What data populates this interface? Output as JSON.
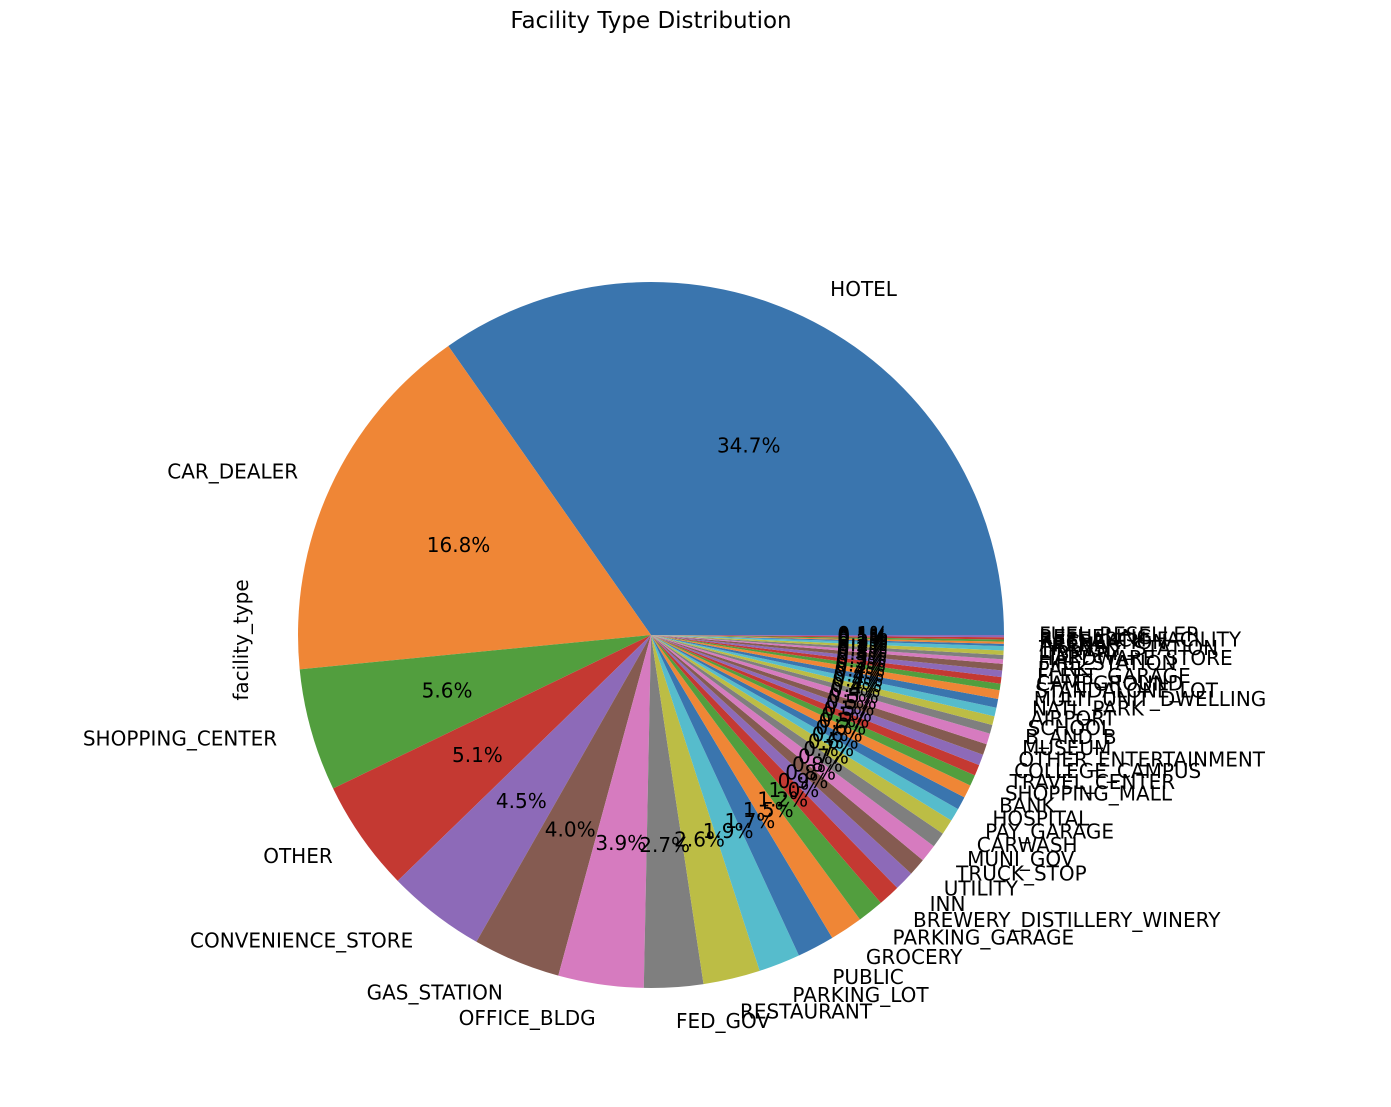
{
  "chart_data": {
    "type": "pie",
    "title": "Facility Type Distribution",
    "ylabel": "facility_type",
    "start_angle_deg": 0,
    "direction": "counterclockwise",
    "categories": [
      "HOTEL",
      "CAR_DEALER",
      "SHOPPING_CENTER",
      "OTHER",
      "CONVENIENCE_STORE",
      "GAS_STATION",
      "OFFICE_BLDG",
      "FED_GOV",
      "RESTAURANT",
      "PARKING_LOT",
      "PUBLIC",
      "GROCERY",
      "PARKING_GARAGE",
      "BREWERY_DISTILLERY_WINERY",
      "INN",
      "UTILITY",
      "TRUCK_STOP",
      "MUNI_GOV",
      "CARWASH",
      "PAY_GARAGE",
      "HOSPITAL",
      "BANK",
      "SHOPPING_MALL",
      "TRAVEL_CENTER",
      "COLLEGE_CAMPUS",
      "OTHER_ENTERTAINMENT",
      "MUSEUM",
      "B_AND_B",
      "SCHOOL",
      "AIRPORT",
      "NATL_PARK",
      "MULTI_UNIT_DWELLING",
      "STANDALONE_LOT",
      "CAMPGROUND",
      "FLEET_GARAGE",
      "PARK",
      "FIRE_STATION",
      "HARDWARE_STORE",
      "LIBRARY",
      "TRANSIT_STATION",
      "ARENA",
      "RECREATION",
      "RESEARCH_FACILITY",
      "REFUELING",
      "FUEL_RESELLER"
    ],
    "values": [
      34.7,
      16.8,
      5.6,
      5.1,
      4.5,
      4.0,
      3.9,
      2.7,
      2.6,
      1.9,
      1.7,
      1.5,
      1.2,
      1.0,
      0.9,
      0.8,
      0.8,
      0.7,
      0.7,
      0.6,
      0.6,
      0.6,
      0.5,
      0.5,
      0.5,
      0.5,
      0.5,
      0.4,
      0.4,
      0.4,
      0.4,
      0.4,
      0.3,
      0.3,
      0.3,
      0.3,
      0.2,
      0.2,
      0.2,
      0.2,
      0.1,
      0.1,
      0.1,
      0.1,
      0.1
    ],
    "labels": [
      "34.7%",
      "16.8%",
      "5.6%",
      "5.1%",
      "4.5%",
      "4.0%",
      "3.9%",
      "2.7%",
      "2.6%",
      "1.9%",
      "1.7%",
      "1.5%",
      "1.2%",
      "1.0%",
      "0.9%",
      "0.8%",
      "0.8%",
      "0.7%",
      "0.7%",
      "0.6%",
      "0.6%",
      "0.6%",
      "0.5%",
      "0.5%",
      "0.5%",
      "0.5%",
      "0.5%",
      "0.4%",
      "0.4%",
      "0.4%",
      "0.4%",
      "0.4%",
      "0.3%",
      "0.3%",
      "0.3%",
      "0.3%",
      "0.2%",
      "0.2%",
      "0.2%",
      "0.2%",
      "0.1%",
      "0.1%",
      "0.1%",
      "0.1%",
      "0.1%"
    ],
    "colors": [
      "#3a75ae",
      "#ef8636",
      "#529e3e",
      "#c43932",
      "#8d6ab8",
      "#855b51",
      "#d67bbf",
      "#7f7f7f",
      "#bcbd45",
      "#56bccc"
    ],
    "legend": "none"
  }
}
